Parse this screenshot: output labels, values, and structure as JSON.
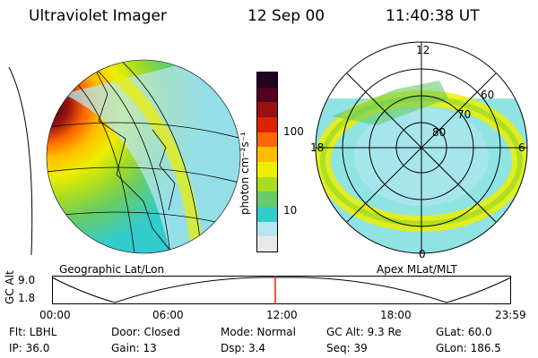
{
  "header": {
    "title": "Ultraviolet Imager",
    "date": "12 Sep 00",
    "time": "11:40:38 UT"
  },
  "left_map": {
    "label": "Geographic Lat/Lon"
  },
  "colorbar": {
    "unit": "photon cm⁻²s⁻¹",
    "ticks": [
      "100",
      "10"
    ],
    "colors": [
      "#e8e8e8",
      "#b6e6f0",
      "#33cccc",
      "#66cc66",
      "#aadd22",
      "#eeee00",
      "#ffbb00",
      "#ff6600",
      "#dd2200",
      "#991111",
      "#550022",
      "#220022"
    ]
  },
  "polar_plot": {
    "label": "Apex MLat/MLT",
    "mlt_labels": {
      "top": "12",
      "left": "18",
      "right": "6",
      "bottom": "0"
    },
    "mlat_labels": [
      "60",
      "70",
      "80"
    ]
  },
  "timeline": {
    "axis_label": "GC Alt",
    "y_top": "9.0",
    "y_bottom": "1.8",
    "ticks": [
      "00:00",
      "06:00",
      "12:00",
      "18:00",
      "23:59"
    ],
    "current_marker_time": "11:40"
  },
  "info": {
    "row1": [
      {
        "text": "Flt: LBHL"
      },
      {
        "text": "Door: Closed"
      },
      {
        "text": "Mode: Normal"
      },
      {
        "text": "GC Alt: 9.3 Re"
      },
      {
        "text": "GLat:  60.0"
      }
    ],
    "row2": [
      {
        "text": "IP: 36.0"
      },
      {
        "text": "Gain: 13"
      },
      {
        "text": "Dsp:    3.4"
      },
      {
        "text": "Seq: 39"
      },
      {
        "text": "GLon: 186.5"
      }
    ]
  }
}
